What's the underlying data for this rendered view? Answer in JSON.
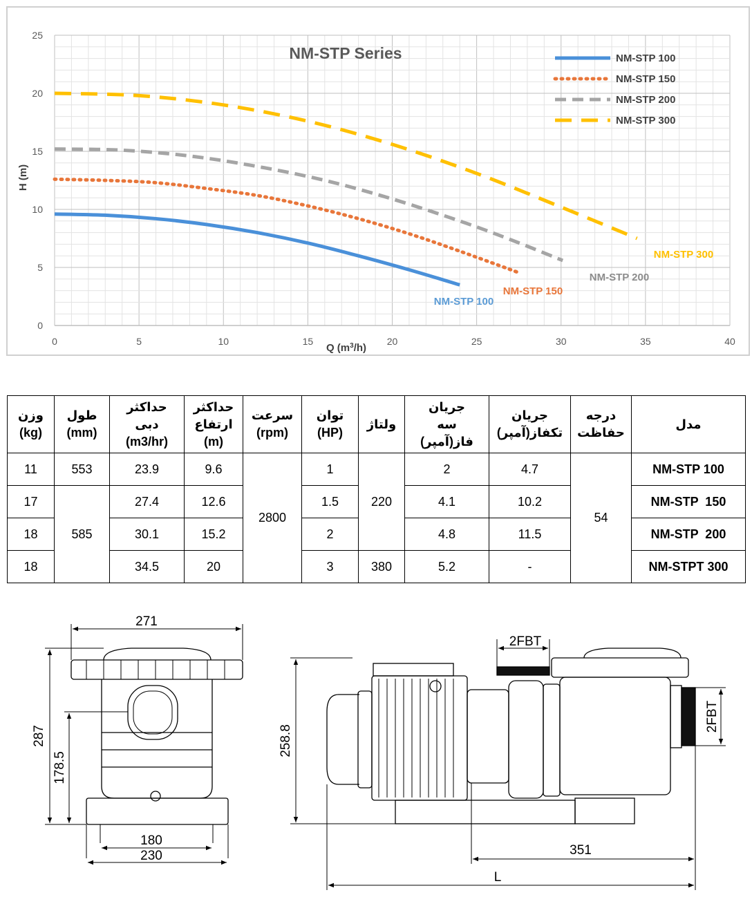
{
  "chart_data": {
    "type": "line",
    "title": "NM-STP Series",
    "xlabel_html": "Q (m³/h)",
    "xlabel": "Q (m3/h)",
    "ylabel": "H (m)",
    "xlim": [
      0,
      40
    ],
    "ylim": [
      0,
      25
    ],
    "xticks": [
      "0",
      "5",
      "10",
      "15",
      "20",
      "25",
      "30",
      "35",
      "40"
    ],
    "yticks": [
      "0",
      "5",
      "10",
      "15",
      "20",
      "25"
    ],
    "grid": true,
    "legend_position": "top-right",
    "series": [
      {
        "name": "NM-STP 100",
        "color": "#4a90d9",
        "dash": "solid",
        "label_color": "#5b9bd5",
        "x": [
          0,
          3,
          6,
          9,
          12,
          15,
          18,
          21,
          24
        ],
        "y": [
          9.6,
          9.5,
          9.2,
          8.7,
          8.0,
          7.1,
          6.0,
          4.8,
          3.5
        ]
      },
      {
        "name": "NM-STP 150",
        "color": "#e8763a",
        "dash": "dot",
        "label_color": "#e8763a",
        "x": [
          0,
          3,
          6,
          9,
          12,
          15,
          18,
          21,
          24,
          27.4
        ],
        "y": [
          12.6,
          12.5,
          12.3,
          11.8,
          11.2,
          10.3,
          9.2,
          7.9,
          6.4,
          4.6
        ]
      },
      {
        "name": "NM-STP 200",
        "color": "#a5a5a5",
        "dash": "dash",
        "label_color": "#8c8c8c",
        "x": [
          0,
          4,
          8,
          12,
          16,
          20,
          24,
          27,
          30.1
        ],
        "y": [
          15.2,
          15.1,
          14.6,
          13.7,
          12.5,
          10.9,
          9.0,
          7.4,
          5.6
        ]
      },
      {
        "name": "NM-STP 300",
        "color": "#ffc000",
        "dash": "longdash",
        "label_color": "#ffc000",
        "x": [
          0,
          5,
          10,
          15,
          20,
          25,
          30,
          34.5
        ],
        "y": [
          20.0,
          19.8,
          19.0,
          17.6,
          15.6,
          13.1,
          10.2,
          7.5
        ]
      }
    ]
  },
  "table": {
    "headers": [
      "مدل",
      "درجه\nحفاظت",
      "جریان\nتکفاز(آمپر)",
      "جریان\nسه\nفاز(آمپر)",
      "ولتاژ",
      "توان\n(HP)",
      "سرعت\n(rpm)",
      "حداکثر\nارتفاع\n(m)",
      "حداکثر\nدبی\n(m3/hr)",
      "طول\n(mm)",
      "وزن\n(kg)"
    ],
    "rows": [
      {
        "model": "NM-STP 100",
        "protection": "54",
        "single_phase": "4.7",
        "three_phase": "2",
        "voltage": "220",
        "power": "1",
        "speed": "2800",
        "max_head": "9.6",
        "max_flow": "23.9",
        "length": "553",
        "weight": "11"
      },
      {
        "model": "NM-STP  150",
        "single_phase": "10.2",
        "three_phase": "4.1",
        "power": "1.5",
        "max_head": "12.6",
        "max_flow": "27.4",
        "length": "585",
        "weight": "17"
      },
      {
        "model": "NM-STP  200",
        "single_phase": "11.5",
        "three_phase": "4.8",
        "power": "2",
        "max_head": "15.2",
        "max_flow": "30.1",
        "weight": "18"
      },
      {
        "model": "NM-STPT 300",
        "single_phase": "-",
        "three_phase": "5.2",
        "voltage": "380",
        "power": "3",
        "max_head": "20",
        "max_flow": "34.5",
        "weight": "18"
      }
    ]
  },
  "drawing": {
    "front": {
      "width_top": "271",
      "height_total": "287",
      "height_inlet": "178.5",
      "base_inner": "180",
      "base_outer": "230"
    },
    "side": {
      "thread_top": "2FBT",
      "thread_side": "2FBT",
      "height": "258.8",
      "length_motor": "351",
      "length_total": "L"
    }
  }
}
